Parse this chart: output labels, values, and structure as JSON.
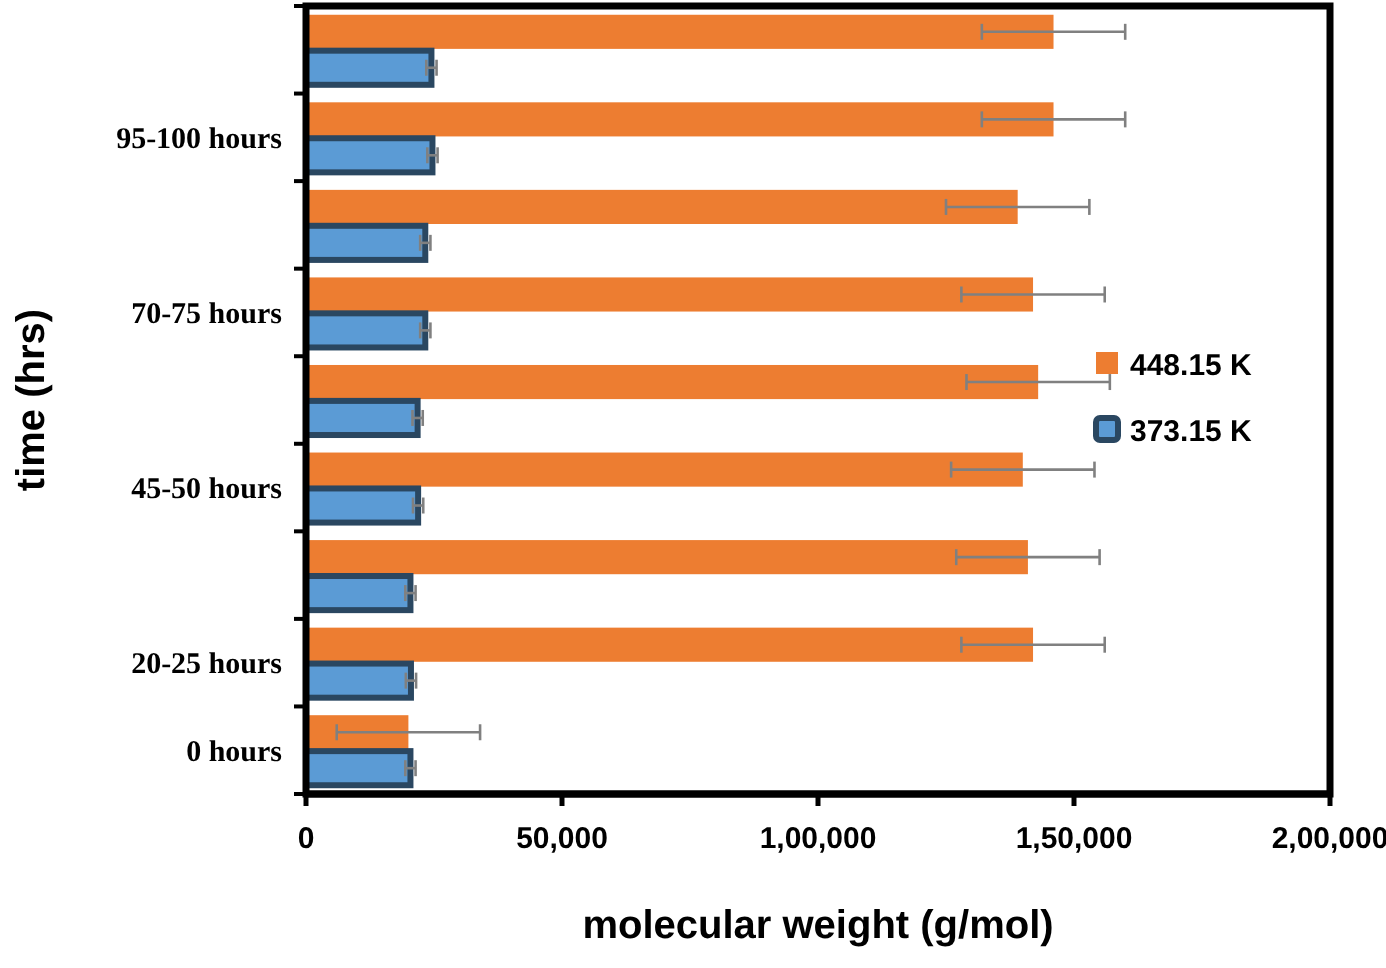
{
  "chart_data": {
    "type": "bar",
    "orientation": "horizontal",
    "xlabel": "molecular weight (g/mol)",
    "ylabel": "time (hrs)",
    "categories": [
      null,
      "95-100 hours",
      null,
      "70-75 hours",
      null,
      "45-50 hours",
      null,
      "20-25 hours",
      "0 hours"
    ],
    "series": [
      {
        "name": "448.15 K",
        "color": "#ed7d31",
        "values": [
          146000,
          146000,
          139000,
          142000,
          143000,
          140000,
          141000,
          142000,
          20000
        ],
        "errors": [
          14000,
          14000,
          14000,
          14000,
          14000,
          14000,
          14000,
          14000,
          14000
        ]
      },
      {
        "name": "373.15 K",
        "color": "#5b9bd5",
        "values": [
          24500,
          24700,
          23300,
          23300,
          21800,
          21900,
          20400,
          20500,
          20400
        ],
        "errors": [
          1000,
          1000,
          1000,
          1000,
          1000,
          1000,
          1000,
          1000,
          1000
        ]
      }
    ],
    "xlim": [
      0,
      200000
    ],
    "xticks": [
      0,
      {
        "value": 50000,
        "label": "50,000"
      },
      {
        "value": 100000,
        "label": "1,00,000"
      },
      {
        "value": 150000,
        "label": "1,50,000"
      },
      {
        "value": 200000,
        "label": "2,00,000"
      }
    ],
    "grid": false,
    "legend": "right"
  }
}
